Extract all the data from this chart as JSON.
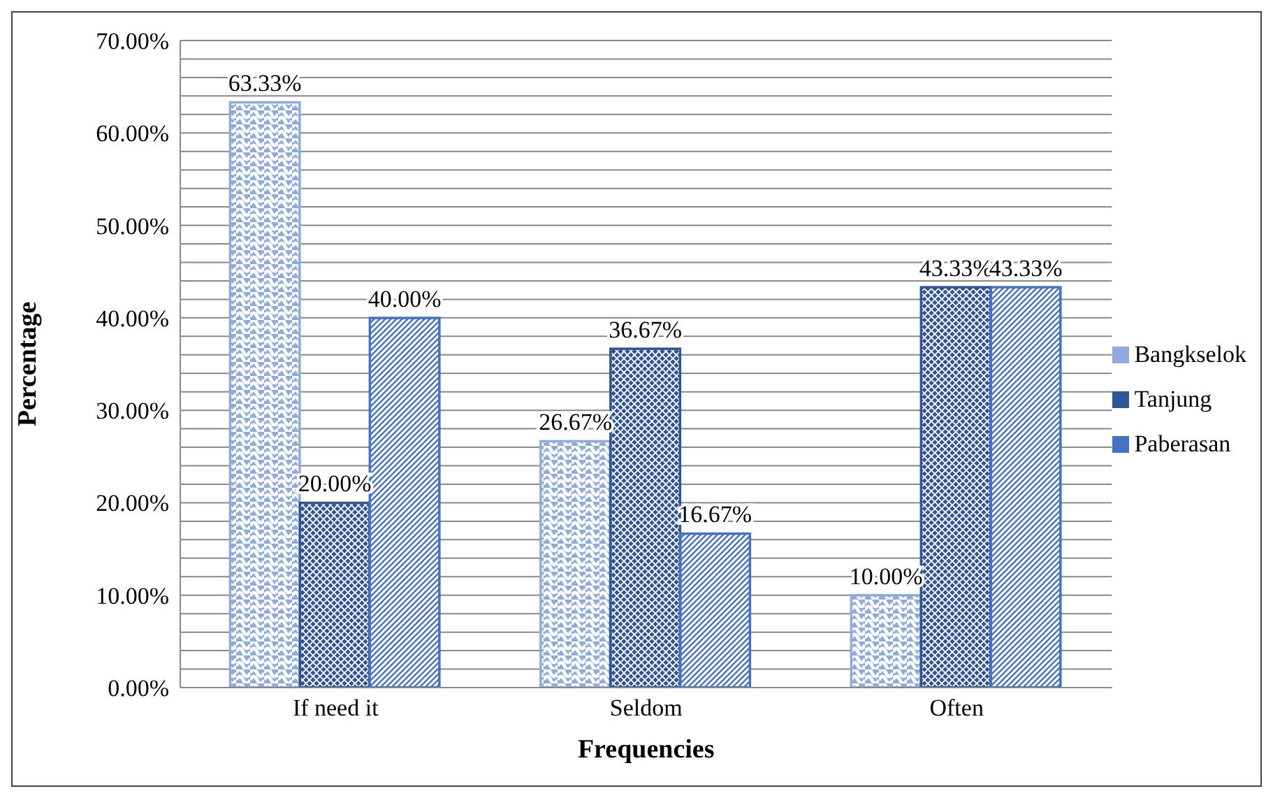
{
  "chart_data": {
    "type": "bar",
    "xlabel": "Frequencies",
    "ylabel": "Percentage",
    "categories": [
      "If need it",
      "Seldom",
      "Often"
    ],
    "series": [
      {
        "name": "Bangkselok",
        "color": "#8faadc",
        "values": [
          63.33,
          26.67,
          10.0
        ],
        "value_labels": [
          "63.33%",
          "26.67%",
          "10.00%"
        ]
      },
      {
        "name": "Tanjung",
        "color": "#2f5597",
        "values": [
          20.0,
          36.67,
          43.33
        ],
        "value_labels": [
          "20.00%",
          "36.67%",
          "43.33%"
        ]
      },
      {
        "name": "Paberasan",
        "color": "#4472c4",
        "values": [
          40.0,
          16.67,
          43.33
        ],
        "value_labels": [
          "40.00%",
          "16.67%",
          "43.33%"
        ]
      }
    ],
    "ylim": [
      0,
      70
    ],
    "yticks": [
      {
        "value": 0,
        "label": "0.00%"
      },
      {
        "value": 2,
        "label": null
      },
      {
        "value": 4,
        "label": null
      },
      {
        "value": 6,
        "label": null
      },
      {
        "value": 8,
        "label": null
      },
      {
        "value": 10,
        "label": "10.00%"
      },
      {
        "value": 12,
        "label": null
      },
      {
        "value": 14,
        "label": null
      },
      {
        "value": 16,
        "label": null
      },
      {
        "value": 18,
        "label": null
      },
      {
        "value": 20,
        "label": "20.00%"
      },
      {
        "value": 22,
        "label": null
      },
      {
        "value": 24,
        "label": null
      },
      {
        "value": 26,
        "label": null
      },
      {
        "value": 28,
        "label": null
      },
      {
        "value": 30,
        "label": "30.00%"
      },
      {
        "value": 32,
        "label": null
      },
      {
        "value": 34,
        "label": null
      },
      {
        "value": 36,
        "label": null
      },
      {
        "value": 38,
        "label": null
      },
      {
        "value": 40,
        "label": "40.00%"
      },
      {
        "value": 42,
        "label": null
      },
      {
        "value": 44,
        "label": null
      },
      {
        "value": 46,
        "label": null
      },
      {
        "value": 48,
        "label": null
      },
      {
        "value": 50,
        "label": "50.00%"
      },
      {
        "value": 52,
        "label": null
      },
      {
        "value": 54,
        "label": null
      },
      {
        "value": 56,
        "label": null
      },
      {
        "value": 58,
        "label": null
      },
      {
        "value": 60,
        "label": "60.00%"
      },
      {
        "value": 62,
        "label": null
      },
      {
        "value": 64,
        "label": null
      },
      {
        "value": 66,
        "label": null
      },
      {
        "value": 68,
        "label": null
      },
      {
        "value": 70,
        "label": "70.00%"
      }
    ],
    "grid": "y",
    "legend": "right"
  }
}
